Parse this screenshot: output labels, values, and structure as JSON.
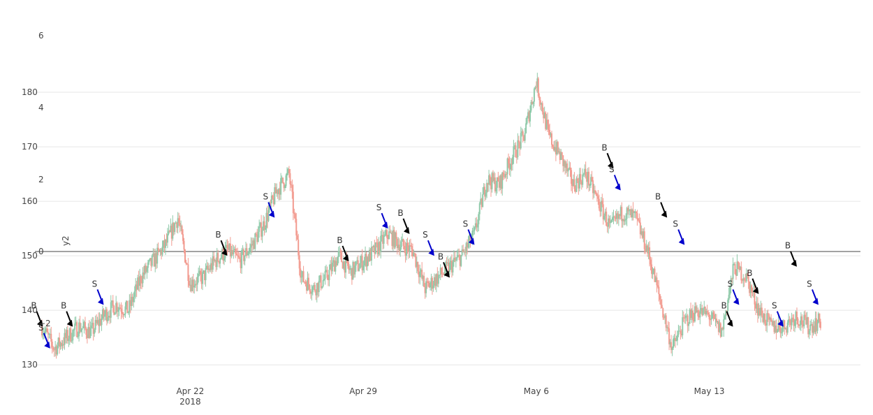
{
  "chart_data": {
    "type": "candlestick",
    "colors": {
      "increasing": "#8fc9a9",
      "decreasing": "#f29b90",
      "buy_arrow": "#000000",
      "sell_arrow": "#0000cc",
      "grid": "#e6e6e6",
      "zero_line": "#444444"
    },
    "x_axis": {
      "range": [
        "2018-04-16",
        "2018-05-19"
      ],
      "ticks": [
        {
          "date": "2018-04-22",
          "label": "Apr 22",
          "sublabel": "2018"
        },
        {
          "date": "2018-04-29",
          "label": "Apr 29",
          "sublabel": ""
        },
        {
          "date": "2018-05-06",
          "label": "May 6",
          "sublabel": ""
        },
        {
          "date": "2018-05-13",
          "label": "May 13",
          "sublabel": ""
        }
      ]
    },
    "y_axis": {
      "range": [
        129,
        195
      ],
      "ticks": [
        {
          "value": 130,
          "label": "130"
        },
        {
          "value": 140,
          "label": "140"
        },
        {
          "value": 150,
          "label": "150"
        },
        {
          "value": 160,
          "label": "160"
        },
        {
          "value": 170,
          "label": "170"
        },
        {
          "value": 180,
          "label": "180"
        }
      ]
    },
    "y2_axis": {
      "title": "y2",
      "range": [
        -3.3,
        6.7
      ],
      "ticks": [
        {
          "value": -2,
          "label": "−2"
        },
        {
          "value": 0,
          "label": "0"
        },
        {
          "value": 2,
          "label": "2"
        },
        {
          "value": 4,
          "label": "4"
        },
        {
          "value": 6,
          "label": "6"
        }
      ]
    },
    "price_path": [
      [
        "2018-04-16T00:00",
        137
      ],
      [
        "2018-04-16T12:00",
        133
      ],
      [
        "2018-04-17T00:00",
        135
      ],
      [
        "2018-04-17T12:00",
        137
      ],
      [
        "2018-04-18T00:00",
        136
      ],
      [
        "2018-04-18T12:00",
        139
      ],
      [
        "2018-04-19T00:00",
        141
      ],
      [
        "2018-04-19T12:00",
        140
      ],
      [
        "2018-04-20T00:00",
        146
      ],
      [
        "2018-04-20T12:00",
        149
      ],
      [
        "2018-04-21T00:00",
        152
      ],
      [
        "2018-04-21T12:00",
        157
      ],
      [
        "2018-04-22T00:00",
        145
      ],
      [
        "2018-04-22T12:00",
        146
      ],
      [
        "2018-04-23T00:00",
        149
      ],
      [
        "2018-04-23T12:00",
        151
      ],
      [
        "2018-04-24T00:00",
        149
      ],
      [
        "2018-04-24T12:00",
        152
      ],
      [
        "2018-04-25T00:00",
        156
      ],
      [
        "2018-04-25T12:00",
        162
      ],
      [
        "2018-04-26T00:00",
        165
      ],
      [
        "2018-04-26T12:00",
        146
      ],
      [
        "2018-04-27T00:00",
        144
      ],
      [
        "2018-04-27T12:00",
        146
      ],
      [
        "2018-04-28T00:00",
        150
      ],
      [
        "2018-04-28T12:00",
        147
      ],
      [
        "2018-04-29T00:00",
        149
      ],
      [
        "2018-04-29T12:00",
        151
      ],
      [
        "2018-04-30T00:00",
        154
      ],
      [
        "2018-04-30T12:00",
        152
      ],
      [
        "2018-05-01T00:00",
        151
      ],
      [
        "2018-05-01T12:00",
        144
      ],
      [
        "2018-05-02T00:00",
        146
      ],
      [
        "2018-05-02T12:00",
        148
      ],
      [
        "2018-05-03T00:00",
        150
      ],
      [
        "2018-05-03T12:00",
        154
      ],
      [
        "2018-05-04T00:00",
        164
      ],
      [
        "2018-05-04T12:00",
        163
      ],
      [
        "2018-05-05T00:00",
        168
      ],
      [
        "2018-05-05T12:00",
        172
      ],
      [
        "2018-05-06T00:00",
        182
      ],
      [
        "2018-05-06T12:00",
        172
      ],
      [
        "2018-05-07T00:00",
        168
      ],
      [
        "2018-05-07T12:00",
        163
      ],
      [
        "2018-05-08T00:00",
        165
      ],
      [
        "2018-05-08T12:00",
        160
      ],
      [
        "2018-05-09T00:00",
        155
      ],
      [
        "2018-05-09T12:00",
        158
      ],
      [
        "2018-05-10T00:00",
        157
      ],
      [
        "2018-05-10T12:00",
        151
      ],
      [
        "2018-05-11T00:00",
        142
      ],
      [
        "2018-05-11T12:00",
        133
      ],
      [
        "2018-05-12T00:00",
        138
      ],
      [
        "2018-05-12T12:00",
        140
      ],
      [
        "2018-05-13T00:00",
        139
      ],
      [
        "2018-05-13T12:00",
        136
      ],
      [
        "2018-05-14T00:00",
        148
      ],
      [
        "2018-05-14T12:00",
        146
      ],
      [
        "2018-05-15T00:00",
        140
      ],
      [
        "2018-05-15T12:00",
        137
      ],
      [
        "2018-05-16T00:00",
        137
      ],
      [
        "2018-05-16T12:00",
        139
      ],
      [
        "2018-05-17T00:00",
        137
      ],
      [
        "2018-05-17T12:00",
        138
      ]
    ],
    "markers": [
      {
        "label": "B",
        "date": "2018-04-16T01:00",
        "price": 137,
        "color": "buy"
      },
      {
        "label": "S",
        "date": "2018-04-16T08:00",
        "price": 133,
        "color": "sell"
      },
      {
        "label": "B",
        "date": "2018-04-17T06:00",
        "price": 137,
        "color": "buy"
      },
      {
        "label": "S",
        "date": "2018-04-18T12:00",
        "price": 141,
        "color": "sell"
      },
      {
        "label": "B",
        "date": "2018-04-23T12:00",
        "price": 150,
        "color": "buy"
      },
      {
        "label": "S",
        "date": "2018-04-25T10:00",
        "price": 157,
        "color": "sell"
      },
      {
        "label": "B",
        "date": "2018-04-28T10:00",
        "price": 149,
        "color": "buy"
      },
      {
        "label": "S",
        "date": "2018-04-30T00:00",
        "price": 155,
        "color": "sell"
      },
      {
        "label": "B",
        "date": "2018-04-30T21:00",
        "price": 154,
        "color": "buy"
      },
      {
        "label": "S",
        "date": "2018-05-01T21:00",
        "price": 150,
        "color": "sell"
      },
      {
        "label": "B",
        "date": "2018-05-02T12:00",
        "price": 146,
        "color": "buy"
      },
      {
        "label": "S",
        "date": "2018-05-03T12:00",
        "price": 152,
        "color": "sell"
      },
      {
        "label": "B",
        "date": "2018-05-09T03:00",
        "price": 166,
        "color": "buy"
      },
      {
        "label": "S",
        "date": "2018-05-09T10:00",
        "price": 162,
        "color": "sell"
      },
      {
        "label": "B",
        "date": "2018-05-11T07:00",
        "price": 157,
        "color": "buy"
      },
      {
        "label": "S",
        "date": "2018-05-12T00:00",
        "price": 152,
        "color": "sell"
      },
      {
        "label": "B",
        "date": "2018-05-13T23:00",
        "price": 137,
        "color": "buy"
      },
      {
        "label": "S",
        "date": "2018-05-14T05:00",
        "price": 141,
        "color": "sell"
      },
      {
        "label": "B",
        "date": "2018-05-15T00:00",
        "price": 143,
        "color": "buy"
      },
      {
        "label": "S",
        "date": "2018-05-16T00:00",
        "price": 137,
        "color": "sell"
      },
      {
        "label": "B",
        "date": "2018-05-16T13:00",
        "price": 148,
        "color": "buy"
      },
      {
        "label": "S",
        "date": "2018-05-17T10:00",
        "price": 141,
        "color": "sell"
      }
    ]
  }
}
